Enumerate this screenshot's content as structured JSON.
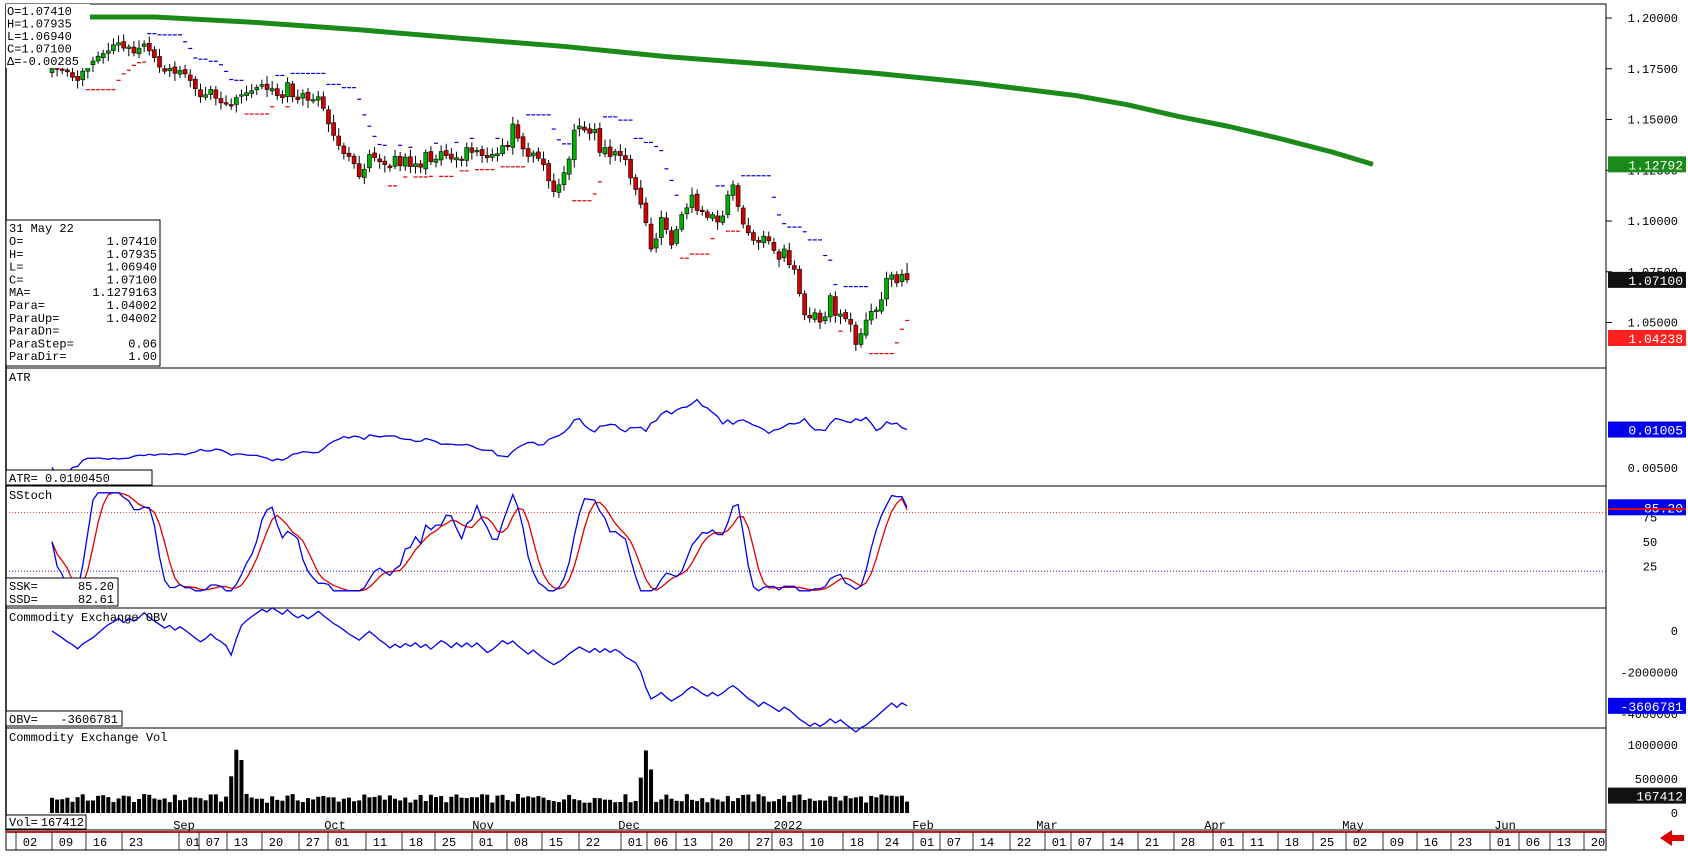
{
  "header": {
    "ohlc_lines": [
      "O=1.07410",
      "H=1.07935",
      "L=1.06940",
      "C=1.07100",
      "Δ=-0.00285"
    ]
  },
  "info_box": {
    "date": "31 May 22",
    "rows": [
      {
        "label": "O=",
        "value": "1.07410"
      },
      {
        "label": "H=",
        "value": "1.07935"
      },
      {
        "label": "L=",
        "value": "1.06940"
      },
      {
        "label": "C=",
        "value": "1.07100"
      },
      {
        "label": "MA=",
        "value": "1.1279163"
      },
      {
        "label": "Para=",
        "value": "1.04002"
      },
      {
        "label": "ParaUp=",
        "value": "1.04002"
      },
      {
        "label": "ParaDn=",
        "value": ""
      },
      {
        "label": "ParaStep=",
        "value": "0.06"
      },
      {
        "label": "ParaDir=",
        "value": "1.00"
      }
    ]
  },
  "colors": {
    "up_candle": "#00b000",
    "down_candle": "#d00000",
    "ma": "#1a8a1a",
    "sar_up": "#e00000",
    "sar_down": "#0000e0",
    "indicator_blue": "#0000ee",
    "indicator_red": "#e00000",
    "vol_bar": "#000000",
    "badge_green": "#1a8a1a",
    "badge_black": "#111111",
    "badge_red": "#ff2020",
    "badge_blue": "#0000ee"
  },
  "price_axis": {
    "ticks": [
      "1.20000",
      "1.17500",
      "1.15000",
      "1.12500",
      "1.10000",
      "1.07500",
      "1.05000"
    ]
  },
  "price_badges": {
    "ma": "1.12792",
    "close": "1.07100",
    "sar": "1.04238"
  },
  "atr_panel": {
    "title": "ATR",
    "readout": "ATR= 0.0100450",
    "badge": "0.01005",
    "ticks": [
      "0.00500"
    ]
  },
  "stoch_panel": {
    "title": "SStoch",
    "ssk_label": "SSK=",
    "ssk_value": "85.20",
    "ssd_label": "SSD=",
    "ssd_value": "82.61",
    "badge": "85.20",
    "ticks": [
      "75",
      "50",
      "25"
    ]
  },
  "obv_panel": {
    "title": "Commodity Exchange OBV",
    "readout_label": "OBV=",
    "readout_value": "-3606781",
    "badge": "-3606781",
    "ticks": [
      "0",
      "-2000000",
      "-4000000"
    ]
  },
  "vol_panel": {
    "title": "Commodity Exchange Vol",
    "readout_label": "Vol=",
    "readout_value": "167412",
    "badge": "167412",
    "ticks": [
      "1000000",
      "500000",
      "0"
    ]
  },
  "x_axis": {
    "days": [
      "02",
      "09",
      "16",
      "23",
      "01",
      "07",
      "13",
      "20",
      "27",
      "01",
      "11",
      "18",
      "25",
      "01",
      "08",
      "15",
      "22",
      "01",
      "06",
      "13",
      "20",
      "27",
      "03",
      "10",
      "18",
      "24",
      "01",
      "07",
      "14",
      "22",
      "01",
      "07",
      "14",
      "21",
      "28",
      "01",
      "11",
      "18",
      "25",
      "02",
      "09",
      "16",
      "23",
      "01",
      "06",
      "13",
      "20"
    ],
    "months": [
      "Sep",
      "Oct",
      "Nov",
      "Dec",
      "2022",
      "Feb",
      "Mar",
      "Apr",
      "May",
      "Jun"
    ]
  },
  "chart_data": {
    "type": "candlestick",
    "instrument_last_date": "31 May 22",
    "last_bar": {
      "open": 1.0741,
      "high": 1.07935,
      "low": 1.0694,
      "close": 1.071,
      "change": -0.00285
    },
    "moving_average": {
      "last": 1.1279163,
      "path": [
        [
          0,
          1.2005
        ],
        [
          20,
          1.2005
        ],
        [
          40,
          1.1978
        ],
        [
          60,
          1.1942
        ],
        [
          80,
          1.19
        ],
        [
          100,
          1.186
        ],
        [
          120,
          1.181
        ],
        [
          140,
          1.1772
        ],
        [
          160,
          1.173
        ],
        [
          180,
          1.168
        ],
        [
          200,
          1.1618
        ],
        [
          210,
          1.1573
        ],
        [
          220,
          1.1515
        ],
        [
          230,
          1.1465
        ],
        [
          240,
          1.1405
        ],
        [
          250,
          1.134
        ],
        [
          258,
          1.1279
        ]
      ]
    },
    "closes": [
      1.1751,
      1.1748,
      1.1745,
      1.1735,
      1.1708,
      1.1692,
      1.1738,
      1.177,
      1.1788,
      1.1812,
      1.1825,
      1.1838,
      1.1868,
      1.1878,
      1.1852,
      1.1858,
      1.1828,
      1.1852,
      1.1872,
      1.1838,
      1.1805,
      1.1758,
      1.1738,
      1.1752,
      1.1728,
      1.1742,
      1.1725,
      1.1692,
      1.1652,
      1.1612,
      1.1622,
      1.1648,
      1.1605,
      1.1582,
      1.158,
      1.1572,
      1.1608,
      1.1622,
      1.1632,
      1.1642,
      1.1658,
      1.1672,
      1.1648,
      1.1652,
      1.1618,
      1.1608,
      1.1682,
      1.1612,
      1.1598,
      1.1628,
      1.1595,
      1.1598,
      1.1612,
      1.1555,
      1.1478,
      1.1422,
      1.1372,
      1.1332,
      1.1318,
      1.1282,
      1.1218,
      1.1255,
      1.1328,
      1.1312,
      1.1292,
      1.1278,
      1.1262,
      1.1318,
      1.1272,
      1.1315,
      1.1268,
      1.1282,
      1.1265,
      1.1338,
      1.1292,
      1.1305,
      1.1342,
      1.1322,
      1.1305,
      1.1312,
      1.1298,
      1.1362,
      1.1338,
      1.1348,
      1.1322,
      1.1312,
      1.1328,
      1.1332,
      1.1372,
      1.1368,
      1.1478,
      1.1408,
      1.1355,
      1.1318,
      1.1335,
      1.1308,
      1.1278,
      1.1198,
      1.1145,
      1.1178,
      1.1238,
      1.1305,
      1.1448,
      1.1468,
      1.1448,
      1.1432,
      1.1452,
      1.1338,
      1.1362,
      1.1318,
      1.1342,
      1.1322,
      1.1302,
      1.1212,
      1.1155,
      1.1082,
      1.0992,
      1.0862,
      1.0912,
      1.1018,
      1.0958,
      1.0882,
      1.0958,
      1.1032,
      1.1065,
      1.1128,
      1.1052,
      1.1048,
      1.1018,
      1.1032,
      1.0995,
      1.1025,
      1.1128,
      1.1178,
      1.1072,
      1.0985,
      1.0942,
      1.0905,
      1.0895,
      1.0925,
      1.0902,
      1.0855,
      1.0812,
      1.0862,
      1.0785,
      1.0762,
      1.0642,
      1.0538,
      1.0522,
      1.0548,
      1.0502,
      1.0528,
      1.0632,
      1.0535,
      1.0542,
      1.0518,
      1.0492,
      1.0392,
      1.0445,
      1.0512,
      1.0555,
      1.0562,
      1.0612,
      1.0718,
      1.0735,
      1.0695,
      1.0738,
      1.071
    ]
  }
}
